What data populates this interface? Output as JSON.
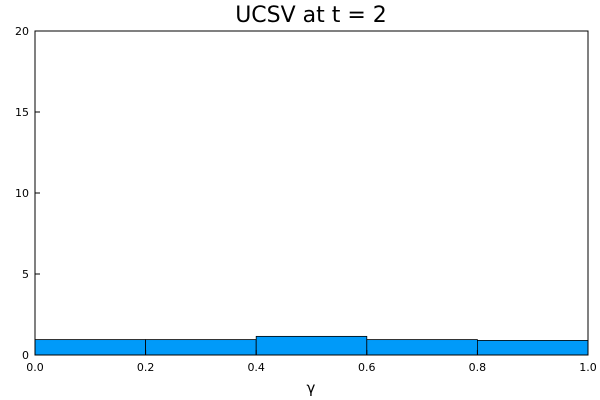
{
  "chart_data": {
    "type": "bar",
    "title": "UCSV at t = 2",
    "xlabel": "γ",
    "ylabel": "",
    "xlim": [
      0.0,
      1.0
    ],
    "ylim": [
      0,
      20
    ],
    "x_ticks": [
      0.0,
      0.2,
      0.4,
      0.6,
      0.8,
      1.0
    ],
    "x_tick_labels": [
      "0.0",
      "0.2",
      "0.4",
      "0.6",
      "0.8",
      "1.0"
    ],
    "y_ticks": [
      0,
      5,
      10,
      15,
      20
    ],
    "y_tick_labels": [
      "0",
      "5",
      "10",
      "15",
      "20"
    ],
    "bin_edges": [
      0.0,
      0.2,
      0.4,
      0.6,
      0.8,
      1.0
    ],
    "values": [
      0.95,
      0.95,
      1.15,
      0.95,
      0.9
    ],
    "bar_color": "#009af9",
    "grid": false,
    "legend": "none"
  }
}
